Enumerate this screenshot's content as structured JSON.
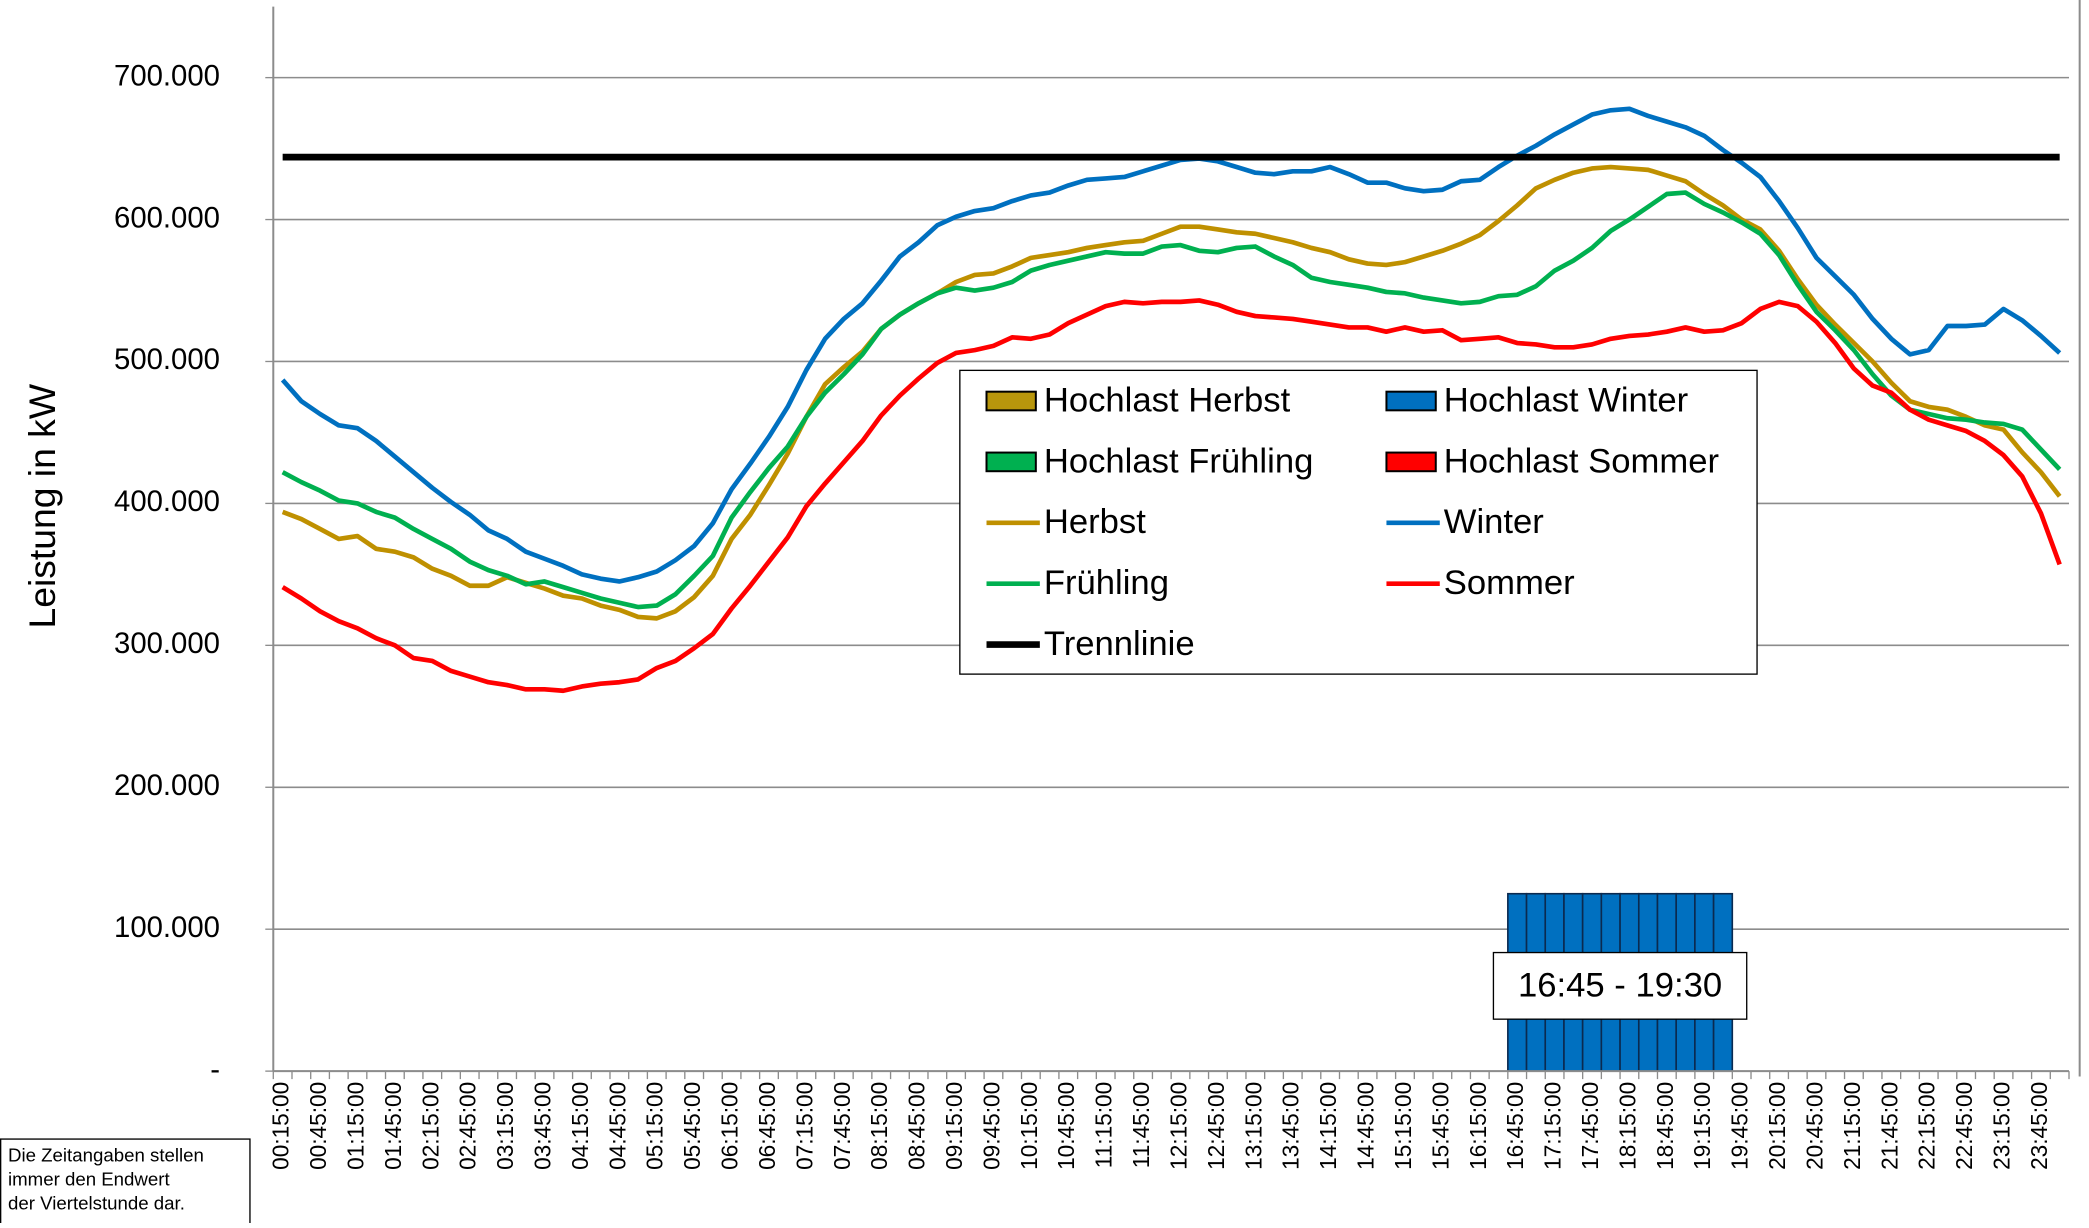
{
  "chart_data": {
    "type": "line",
    "y_label": "Leistung in kW",
    "annotation": "16:45 - 19:30",
    "footnote": [
      "Die Zeitangaben stellen",
      "immer den Endwert",
      "der Viertelstunde dar."
    ],
    "ylim": [
      0,
      750000
    ],
    "yticks": [
      {
        "value": 0,
        "label": "-"
      },
      {
        "value": 100000,
        "label": "100.000"
      },
      {
        "value": 200000,
        "label": "200.000"
      },
      {
        "value": 300000,
        "label": "300.000"
      },
      {
        "value": 400000,
        "label": "400.000"
      },
      {
        "value": 500000,
        "label": "500.000"
      },
      {
        "value": 600000,
        "label": "600.000"
      },
      {
        "value": 700000,
        "label": "700.000"
      }
    ],
    "grid": true,
    "categories": [
      "00:15:00",
      null,
      "00:45:00",
      null,
      "01:15:00",
      null,
      "01:45:00",
      null,
      "02:15:00",
      null,
      "02:45:00",
      null,
      "03:15:00",
      null,
      "03:45:00",
      null,
      "04:15:00",
      null,
      "04:45:00",
      null,
      "05:15:00",
      null,
      "05:45:00",
      null,
      "06:15:00",
      null,
      "06:45:00",
      null,
      "07:15:00",
      null,
      "07:45:00",
      null,
      "08:15:00",
      null,
      "08:45:00",
      null,
      "09:15:00",
      null,
      "09:45:00",
      null,
      "10:15:00",
      null,
      "10:45:00",
      null,
      "11:15:00",
      null,
      "11:45:00",
      null,
      "12:15:00",
      null,
      "12:45:00",
      null,
      "13:15:00",
      null,
      "13:45:00",
      null,
      "14:15:00",
      null,
      "14:45:00",
      null,
      "15:15:00",
      null,
      "15:45:00",
      null,
      "16:15:00",
      null,
      "16:45:00",
      null,
      "17:15:00",
      null,
      "17:45:00",
      null,
      "18:15:00",
      null,
      "18:45:00",
      null,
      "19:15:00",
      null,
      "19:45:00",
      null,
      "20:15:00",
      null,
      "20:45:00",
      null,
      "21:15:00",
      null,
      "21:45:00",
      null,
      "22:15:00",
      null,
      "22:45:00",
      null,
      "23:15:00",
      null,
      "23:45:00",
      null
    ],
    "series": [
      {
        "name": "Hochlast Herbst",
        "type": "bar",
        "color": "#B8960C",
        "values": [
          null,
          null,
          null,
          null,
          null,
          null,
          null,
          null,
          null,
          null,
          null,
          null,
          null,
          null,
          null,
          null,
          null,
          null,
          null,
          null,
          null,
          null,
          null,
          null,
          null,
          null,
          null,
          null,
          null,
          null,
          null,
          null,
          null,
          null,
          null,
          null,
          null,
          null,
          null,
          null,
          null,
          null,
          null,
          null,
          null,
          null,
          null,
          null,
          null,
          null,
          null,
          null,
          null,
          null,
          null,
          null,
          null,
          null,
          null,
          null,
          null,
          null,
          null,
          null,
          null,
          null,
          null,
          null,
          null,
          null,
          null,
          null,
          null,
          null,
          null,
          null,
          null,
          null,
          null,
          null,
          null,
          null,
          null,
          null,
          null,
          null,
          null,
          null,
          null,
          null,
          null,
          null,
          null,
          null,
          null,
          null
        ]
      },
      {
        "name": "Hochlast Winter",
        "type": "bar",
        "color": "#0070C0",
        "values": [
          null,
          null,
          null,
          null,
          null,
          null,
          null,
          null,
          null,
          null,
          null,
          null,
          null,
          null,
          null,
          null,
          null,
          null,
          null,
          null,
          null,
          null,
          null,
          null,
          null,
          null,
          null,
          null,
          null,
          null,
          null,
          null,
          null,
          null,
          null,
          null,
          null,
          null,
          null,
          null,
          null,
          null,
          null,
          null,
          null,
          null,
          null,
          null,
          null,
          null,
          null,
          null,
          null,
          null,
          null,
          null,
          null,
          null,
          null,
          null,
          null,
          null,
          null,
          null,
          null,
          null,
          125000,
          125000,
          125000,
          125000,
          125000,
          125000,
          125000,
          125000,
          125000,
          125000,
          125000,
          125000,
          null,
          null,
          null,
          null,
          null,
          null,
          null,
          null,
          null,
          null,
          null,
          null,
          null,
          null,
          null,
          null,
          null,
          null
        ]
      },
      {
        "name": "Hochlast Frühling",
        "type": "bar",
        "color": "#00B050",
        "values": [
          null,
          null,
          null,
          null,
          null,
          null,
          null,
          null,
          null,
          null,
          null,
          null,
          null,
          null,
          null,
          null,
          null,
          null,
          null,
          null,
          null,
          null,
          null,
          null,
          null,
          null,
          null,
          null,
          null,
          null,
          null,
          null,
          null,
          null,
          null,
          null,
          null,
          null,
          null,
          null,
          null,
          null,
          null,
          null,
          null,
          null,
          null,
          null,
          null,
          null,
          null,
          null,
          null,
          null,
          null,
          null,
          null,
          null,
          null,
          null,
          null,
          null,
          null,
          null,
          null,
          null,
          null,
          null,
          null,
          null,
          null,
          null,
          null,
          null,
          null,
          null,
          null,
          null,
          null,
          null,
          null,
          null,
          null,
          null,
          null,
          null,
          null,
          null,
          null,
          null,
          null,
          null,
          null,
          null,
          null,
          null
        ]
      },
      {
        "name": "Hochlast Sommer",
        "type": "bar",
        "color": "#FF0000",
        "values": [
          null,
          null,
          null,
          null,
          null,
          null,
          null,
          null,
          null,
          null,
          null,
          null,
          null,
          null,
          null,
          null,
          null,
          null,
          null,
          null,
          null,
          null,
          null,
          null,
          null,
          null,
          null,
          null,
          null,
          null,
          null,
          null,
          null,
          null,
          null,
          null,
          null,
          null,
          null,
          null,
          null,
          null,
          null,
          null,
          null,
          null,
          null,
          null,
          null,
          null,
          null,
          null,
          null,
          null,
          null,
          null,
          null,
          null,
          null,
          null,
          null,
          null,
          null,
          null,
          null,
          null,
          null,
          null,
          null,
          null,
          null,
          null,
          null,
          null,
          null,
          null,
          null,
          null,
          null,
          null,
          null,
          null,
          null,
          null,
          null,
          null,
          null,
          null,
          null,
          null,
          null,
          null,
          null,
          null,
          null,
          null
        ]
      },
      {
        "name": "Herbst",
        "type": "line",
        "color": "#BF9000",
        "values": [
          394000,
          389000,
          382000,
          375000,
          377000,
          368000,
          366000,
          362000,
          354000,
          349000,
          342000,
          342000,
          348000,
          344000,
          340000,
          335000,
          333000,
          328000,
          325000,
          320000,
          319000,
          324000,
          334000,
          349000,
          375000,
          392000,
          413000,
          435000,
          461000,
          484000,
          496000,
          507000,
          523000,
          533000,
          541000,
          548000,
          556000,
          561000,
          562000,
          567000,
          573000,
          575000,
          577000,
          580000,
          582000,
          584000,
          585000,
          590000,
          595000,
          595000,
          593000,
          591000,
          590000,
          587000,
          584000,
          580000,
          577000,
          572000,
          569000,
          568000,
          570000,
          574000,
          578000,
          583000,
          589000,
          599000,
          610000,
          622000,
          628000,
          633000,
          636000,
          637000,
          636000,
          635000,
          631000,
          627000,
          618000,
          610000,
          600000,
          593000,
          578000,
          558000,
          540000,
          526000,
          513000,
          500000,
          485000,
          472000,
          468000,
          466000,
          461000,
          455000,
          452000,
          436000,
          422000,
          405000
        ]
      },
      {
        "name": "Winter",
        "type": "line",
        "color": "#0070C0",
        "values": [
          487000,
          472000,
          463000,
          455000,
          453000,
          444000,
          433000,
          422000,
          411000,
          401000,
          392000,
          381000,
          375000,
          366000,
          361000,
          356000,
          350000,
          347000,
          345000,
          348000,
          352000,
          360000,
          370000,
          386000,
          410000,
          428000,
          447000,
          468000,
          494000,
          516000,
          530000,
          541000,
          557000,
          574000,
          584000,
          596000,
          602000,
          606000,
          608000,
          613000,
          617000,
          619000,
          624000,
          628000,
          629000,
          630000,
          634000,
          638000,
          642000,
          643000,
          641000,
          637000,
          633000,
          632000,
          634000,
          634000,
          637000,
          632000,
          626000,
          626000,
          622000,
          620000,
          621000,
          627000,
          628000,
          637000,
          645000,
          652000,
          660000,
          667000,
          674000,
          677000,
          678000,
          673000,
          669000,
          665000,
          659000,
          649000,
          640000,
          630000,
          613000,
          594000,
          573000,
          560000,
          547000,
          530000,
          516000,
          505000,
          508000,
          525000,
          525000,
          526000,
          537000,
          529000,
          518000,
          506000
        ]
      },
      {
        "name": "Frühling",
        "type": "line",
        "color": "#00B050",
        "values": [
          422000,
          415000,
          409000,
          402000,
          400000,
          394000,
          390000,
          382000,
          375000,
          368000,
          359000,
          353000,
          349000,
          343000,
          345000,
          341000,
          337000,
          333000,
          330000,
          327000,
          328000,
          336000,
          349000,
          363000,
          390000,
          408000,
          425000,
          440000,
          461000,
          478000,
          491000,
          505000,
          523000,
          533000,
          541000,
          548000,
          552000,
          550000,
          552000,
          556000,
          564000,
          568000,
          571000,
          574000,
          577000,
          576000,
          576000,
          581000,
          582000,
          578000,
          577000,
          580000,
          581000,
          574000,
          568000,
          559000,
          556000,
          554000,
          552000,
          549000,
          548000,
          545000,
          543000,
          541000,
          542000,
          546000,
          547000,
          553000,
          564000,
          571000,
          580000,
          592000,
          600000,
          609000,
          618000,
          619000,
          611000,
          605000,
          598000,
          590000,
          575000,
          554000,
          535000,
          522000,
          508000,
          491000,
          476000,
          466000,
          463000,
          460000,
          459000,
          457000,
          456000,
          452000,
          438000,
          424000
        ]
      },
      {
        "name": "Sommer",
        "type": "line",
        "color": "#FF0000",
        "values": [
          341000,
          333000,
          324000,
          317000,
          312000,
          305000,
          300000,
          291000,
          289000,
          282000,
          278000,
          274000,
          272000,
          269000,
          269000,
          268000,
          271000,
          273000,
          274000,
          276000,
          284000,
          289000,
          298000,
          308000,
          326000,
          342000,
          359000,
          376000,
          398000,
          414000,
          429000,
          444000,
          462000,
          476000,
          488000,
          499000,
          506000,
          508000,
          511000,
          517000,
          516000,
          519000,
          527000,
          533000,
          539000,
          542000,
          541000,
          542000,
          542000,
          543000,
          540000,
          535000,
          532000,
          531000,
          530000,
          528000,
          526000,
          524000,
          524000,
          521000,
          524000,
          521000,
          522000,
          515000,
          516000,
          517000,
          513000,
          512000,
          510000,
          510000,
          512000,
          516000,
          518000,
          519000,
          521000,
          524000,
          521000,
          522000,
          527000,
          537000,
          542000,
          539000,
          528000,
          513000,
          495000,
          483000,
          478000,
          466000,
          459000,
          455000,
          451000,
          444000,
          434000,
          419000,
          393000,
          357000
        ]
      },
      {
        "name": "Trennlinie",
        "type": "line",
        "color": "#000000",
        "values": [
          644000,
          644000,
          644000,
          644000,
          644000,
          644000,
          644000,
          644000,
          644000,
          644000,
          644000,
          644000,
          644000,
          644000,
          644000,
          644000,
          644000,
          644000,
          644000,
          644000,
          644000,
          644000,
          644000,
          644000,
          644000,
          644000,
          644000,
          644000,
          644000,
          644000,
          644000,
          644000,
          644000,
          644000,
          644000,
          644000,
          644000,
          644000,
          644000,
          644000,
          644000,
          644000,
          644000,
          644000,
          644000,
          644000,
          644000,
          644000,
          644000,
          644000,
          644000,
          644000,
          644000,
          644000,
          644000,
          644000,
          644000,
          644000,
          644000,
          644000,
          644000,
          644000,
          644000,
          644000,
          644000,
          644000,
          644000,
          644000,
          644000,
          644000,
          644000,
          644000,
          644000,
          644000,
          644000,
          644000,
          644000,
          644000,
          644000,
          644000,
          644000,
          644000,
          644000,
          644000,
          644000,
          644000,
          644000,
          644000,
          644000,
          644000,
          644000,
          644000,
          644000,
          644000,
          644000,
          644000
        ]
      }
    ]
  }
}
